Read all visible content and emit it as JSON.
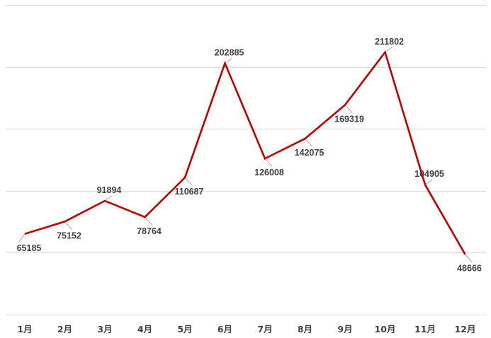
{
  "chart_data": {
    "type": "line",
    "title": "",
    "xlabel": "",
    "ylabel": "",
    "categories": [
      "1月",
      "2月",
      "3月",
      "4月",
      "5月",
      "6月",
      "7月",
      "8月",
      "9月",
      "10月",
      "11月",
      "12月"
    ],
    "series": [
      {
        "values": [
          65185,
          75152,
          91894,
          78764,
          110687,
          202885,
          126008,
          142075,
          169319,
          211802,
          104905,
          48666
        ]
      }
    ],
    "ylim": [
      0,
      250000
    ],
    "yticks": [
      0,
      50000,
      100000,
      150000,
      200000,
      250000
    ],
    "grid": true,
    "legend": "none",
    "data_labels": true,
    "line_color": "#c00000"
  }
}
